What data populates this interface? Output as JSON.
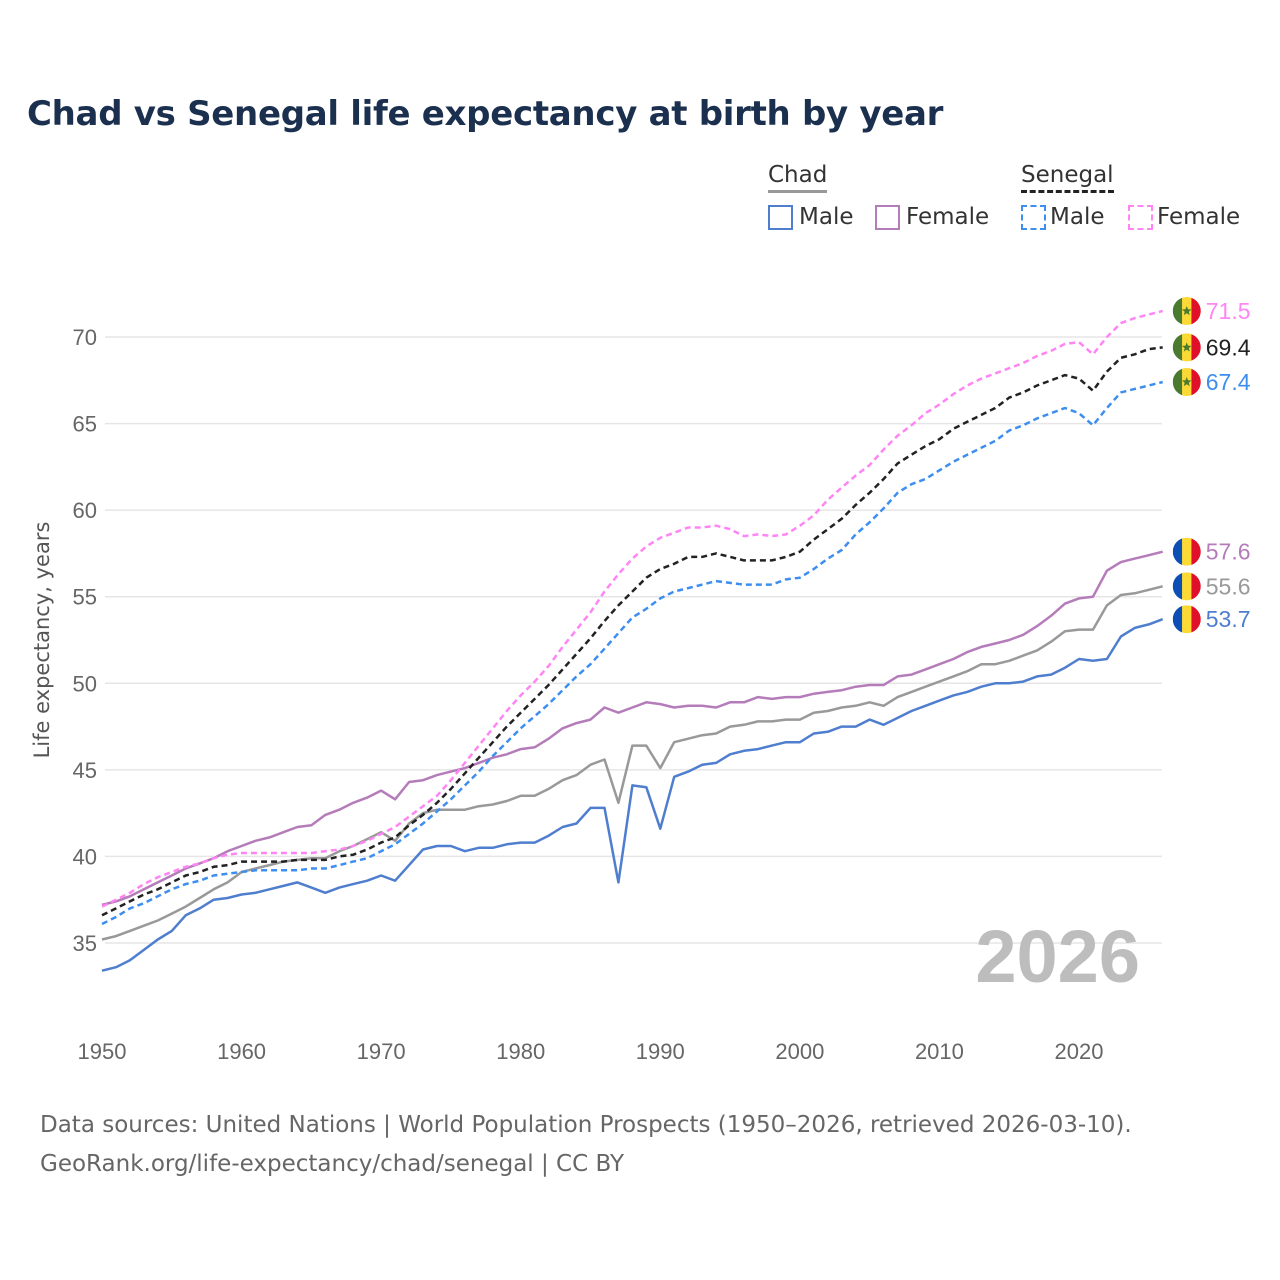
{
  "title": "Chad vs Senegal life expectancy at birth by year",
  "legend": {
    "groups": [
      {
        "name": "Chad",
        "items": [
          "Male",
          "Female"
        ]
      },
      {
        "name": "Senegal",
        "items": [
          "Male",
          "Female"
        ]
      }
    ]
  },
  "watermark_year": "2026",
  "footer": {
    "line1": "Data sources: United Nations | World Population Prospects (1950–2026, retrieved 2026-03-10).",
    "line2": "GeoRank.org/life-expectancy/chad/senegal | CC BY"
  },
  "flags": {
    "senegal": {
      "colors": [
        "#4a7a2e",
        "#fcd934",
        "#e0102b"
      ],
      "star": "#4a7a2e"
    },
    "chad": {
      "colors": [
        "#0b4fb5",
        "#fcd934",
        "#e0102b"
      ]
    }
  },
  "chart_data": {
    "type": "line",
    "title": "Chad vs Senegal life expectancy at birth by year",
    "xlabel": "",
    "ylabel": "Life expectancy, years",
    "xlim": [
      1950,
      2026
    ],
    "ylim": [
      32,
      74
    ],
    "x_ticks": [
      1950,
      1960,
      1970,
      1980,
      1990,
      2000,
      2010,
      2020
    ],
    "y_ticks": [
      35,
      40,
      45,
      50,
      55,
      60,
      65,
      70
    ],
    "grid": true,
    "legend_position": "top-right",
    "x_start": 1950,
    "series": [
      {
        "name": "Chad Male",
        "country": "chad",
        "color": "#4f7ecf",
        "dashed": false,
        "end_label": "53.7",
        "values": [
          33.4,
          33.6,
          34.0,
          34.6,
          35.2,
          35.7,
          36.6,
          37.0,
          37.5,
          37.6,
          37.8,
          37.9,
          38.1,
          38.3,
          38.5,
          38.2,
          37.9,
          38.2,
          38.4,
          38.6,
          38.9,
          38.6,
          39.5,
          40.4,
          40.6,
          40.6,
          40.3,
          40.5,
          40.5,
          40.7,
          40.8,
          40.8,
          41.2,
          41.7,
          41.9,
          42.8,
          42.8,
          38.5,
          44.1,
          44.0,
          41.6,
          44.6,
          44.9,
          45.3,
          45.4,
          45.9,
          46.1,
          46.2,
          46.4,
          46.6,
          46.6,
          47.1,
          47.2,
          47.5,
          47.5,
          47.9,
          47.6,
          48.0,
          48.4,
          48.7,
          49.0,
          49.3,
          49.5,
          49.8,
          50.0,
          50.0,
          50.1,
          50.4,
          50.5,
          50.9,
          51.4,
          51.3,
          51.4,
          52.7,
          53.2,
          53.4,
          53.7
        ]
      },
      {
        "name": "Chad",
        "country": "chad",
        "color": "#999999",
        "dashed": false,
        "end_label": "55.6",
        "values": [
          35.2,
          35.4,
          35.7,
          36.0,
          36.3,
          36.7,
          37.1,
          37.6,
          38.1,
          38.5,
          39.1,
          39.3,
          39.5,
          39.7,
          39.8,
          39.9,
          39.9,
          40.3,
          40.6,
          41.0,
          41.4,
          40.9,
          41.9,
          42.5,
          42.7,
          42.7,
          42.7,
          42.9,
          43.0,
          43.2,
          43.5,
          43.5,
          43.9,
          44.4,
          44.7,
          45.3,
          45.6,
          43.1,
          46.4,
          46.4,
          45.1,
          46.6,
          46.8,
          47.0,
          47.1,
          47.5,
          47.6,
          47.8,
          47.8,
          47.9,
          47.9,
          48.3,
          48.4,
          48.6,
          48.7,
          48.9,
          48.7,
          49.2,
          49.5,
          49.8,
          50.1,
          50.4,
          50.7,
          51.1,
          51.1,
          51.3,
          51.6,
          51.9,
          52.4,
          53.0,
          53.1,
          53.1,
          54.5,
          55.1,
          55.2,
          55.4,
          55.6
        ]
      },
      {
        "name": "Chad Female",
        "country": "chad",
        "color": "#b57cba",
        "dashed": false,
        "end_label": "57.6",
        "values": [
          37.2,
          37.4,
          37.7,
          38.1,
          38.5,
          38.9,
          39.3,
          39.6,
          39.9,
          40.3,
          40.6,
          40.9,
          41.1,
          41.4,
          41.7,
          41.8,
          42.4,
          42.7,
          43.1,
          43.4,
          43.8,
          43.3,
          44.3,
          44.4,
          44.7,
          44.9,
          45.1,
          45.4,
          45.7,
          45.9,
          46.2,
          46.3,
          46.8,
          47.4,
          47.7,
          47.9,
          48.6,
          48.3,
          48.6,
          48.9,
          48.8,
          48.6,
          48.7,
          48.7,
          48.6,
          48.9,
          48.9,
          49.2,
          49.1,
          49.2,
          49.2,
          49.4,
          49.5,
          49.6,
          49.8,
          49.9,
          49.9,
          50.4,
          50.5,
          50.8,
          51.1,
          51.4,
          51.8,
          52.1,
          52.3,
          52.5,
          52.8,
          53.3,
          53.9,
          54.6,
          54.9,
          55.0,
          56.5,
          57.0,
          57.2,
          57.4,
          57.6
        ]
      },
      {
        "name": "Senegal Male",
        "country": "senegal",
        "color": "#3d8ef0",
        "dashed": true,
        "end_label": "67.4",
        "values": [
          36.1,
          36.5,
          37.0,
          37.3,
          37.7,
          38.1,
          38.4,
          38.6,
          38.9,
          39.0,
          39.1,
          39.2,
          39.2,
          39.2,
          39.2,
          39.3,
          39.3,
          39.5,
          39.7,
          39.9,
          40.3,
          40.7,
          41.3,
          41.9,
          42.6,
          43.3,
          44.1,
          44.9,
          45.8,
          46.6,
          47.4,
          48.1,
          48.8,
          49.6,
          50.4,
          51.1,
          52.0,
          52.9,
          53.8,
          54.3,
          54.9,
          55.3,
          55.5,
          55.7,
          55.9,
          55.8,
          55.7,
          55.7,
          55.7,
          56.0,
          56.1,
          56.6,
          57.2,
          57.7,
          58.6,
          59.3,
          60.1,
          61.0,
          61.5,
          61.8,
          62.3,
          62.8,
          63.2,
          63.6,
          64.0,
          64.6,
          64.9,
          65.3,
          65.6,
          65.9,
          65.6,
          64.9,
          65.9,
          66.8,
          67.0,
          67.2,
          67.4
        ]
      },
      {
        "name": "Senegal",
        "country": "senegal",
        "color": "#222222",
        "dashed": true,
        "end_label": "69.4",
        "values": [
          36.6,
          37.0,
          37.4,
          37.8,
          38.1,
          38.5,
          38.9,
          39.1,
          39.4,
          39.5,
          39.7,
          39.7,
          39.7,
          39.7,
          39.8,
          39.8,
          39.8,
          40.0,
          40.1,
          40.4,
          40.8,
          41.1,
          41.8,
          42.4,
          43.1,
          43.9,
          44.8,
          45.7,
          46.6,
          47.5,
          48.3,
          49.1,
          49.9,
          50.8,
          51.7,
          52.6,
          53.6,
          54.5,
          55.3,
          56.1,
          56.6,
          56.9,
          57.3,
          57.3,
          57.5,
          57.3,
          57.1,
          57.1,
          57.1,
          57.3,
          57.6,
          58.3,
          58.9,
          59.5,
          60.3,
          61.0,
          61.8,
          62.7,
          63.2,
          63.7,
          64.1,
          64.7,
          65.1,
          65.5,
          65.9,
          66.5,
          66.8,
          67.2,
          67.5,
          67.8,
          67.6,
          66.9,
          68.0,
          68.8,
          69.0,
          69.3,
          69.4
        ]
      },
      {
        "name": "Senegal Female",
        "country": "senegal",
        "color": "#ff85f5",
        "dashed": true,
        "end_label": "71.5",
        "values": [
          37.1,
          37.5,
          37.9,
          38.4,
          38.8,
          39.1,
          39.4,
          39.6,
          39.9,
          40.1,
          40.2,
          40.2,
          40.2,
          40.2,
          40.2,
          40.2,
          40.3,
          40.4,
          40.6,
          40.9,
          41.3,
          41.7,
          42.3,
          42.9,
          43.5,
          44.4,
          45.4,
          46.4,
          47.4,
          48.4,
          49.3,
          50.1,
          51.0,
          52.1,
          53.1,
          54.1,
          55.3,
          56.3,
          57.2,
          57.9,
          58.4,
          58.7,
          59.0,
          59.0,
          59.1,
          58.9,
          58.5,
          58.6,
          58.5,
          58.6,
          59.1,
          59.7,
          60.6,
          61.3,
          62.0,
          62.6,
          63.5,
          64.3,
          64.9,
          65.6,
          66.1,
          66.7,
          67.2,
          67.6,
          67.9,
          68.2,
          68.5,
          68.9,
          69.2,
          69.6,
          69.7,
          69.0,
          70.0,
          70.8,
          71.1,
          71.3,
          71.5
        ]
      }
    ]
  }
}
